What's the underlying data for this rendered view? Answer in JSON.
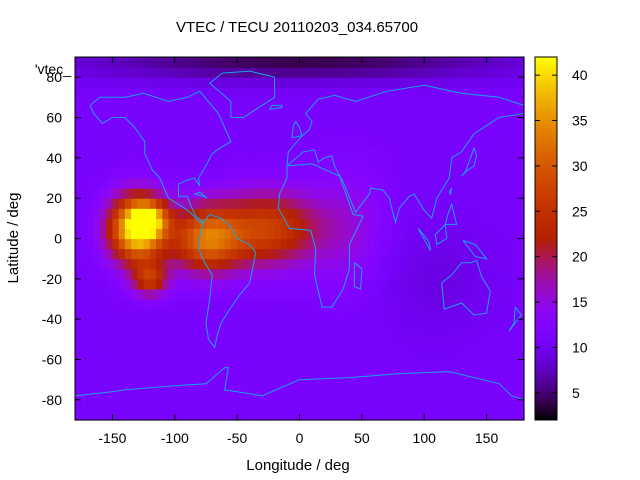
{
  "chart_data": {
    "type": "heatmap",
    "title": "VTEC / TECU 20110203_034.65700",
    "xlabel": "Longitude / deg",
    "ylabel": "Latitude / deg",
    "key_label": "'vtec_",
    "xlim": [
      -180,
      180
    ],
    "ylim": [
      -90,
      90
    ],
    "x_ticks": [
      {
        "value": -150,
        "label": "-150"
      },
      {
        "value": -100,
        "label": "-100"
      },
      {
        "value": -50,
        "label": "-50"
      },
      {
        "value": 0,
        "label": "0"
      },
      {
        "value": 50,
        "label": "50"
      },
      {
        "value": 100,
        "label": "100"
      },
      {
        "value": 150,
        "label": "150"
      }
    ],
    "y_ticks": [
      {
        "value": -80,
        "label": "-80"
      },
      {
        "value": -60,
        "label": "-60"
      },
      {
        "value": -40,
        "label": "-40"
      },
      {
        "value": -20,
        "label": "-20"
      },
      {
        "value": 0,
        "label": "0"
      },
      {
        "value": 20,
        "label": "20"
      },
      {
        "value": 40,
        "label": "40"
      },
      {
        "value": 60,
        "label": "60"
      },
      {
        "value": 80,
        "label": "80"
      }
    ],
    "colorbar": {
      "min": 2,
      "max": 42,
      "ticks": [
        {
          "value": 5,
          "label": "5"
        },
        {
          "value": 10,
          "label": "10"
        },
        {
          "value": 15,
          "label": "15"
        },
        {
          "value": 20,
          "label": "20"
        },
        {
          "value": 25,
          "label": "25"
        },
        {
          "value": 30,
          "label": "30"
        },
        {
          "value": 35,
          "label": "35"
        },
        {
          "value": 40,
          "label": "40"
        }
      ]
    },
    "field": {
      "background_value": 11,
      "grid_lon_step": 5,
      "grid_lat_step": 5,
      "features": [
        {
          "lon": -130,
          "lat": 5,
          "value": 32
        },
        {
          "lon": -75,
          "lat": 0,
          "value": 20
        },
        {
          "lon": -25,
          "lat": 5,
          "value": 16
        },
        {
          "lon": -120,
          "lat": 10,
          "value": 14
        },
        {
          "lon": -120,
          "lat": -20,
          "value": 14
        },
        {
          "lon": 40,
          "lat": 5,
          "value": 4
        },
        {
          "lon": 0,
          "lat": 88,
          "value": -7
        },
        {
          "lon": 110,
          "lat": -20,
          "value": -2
        }
      ]
    },
    "coastline_color": "#1ea0f0"
  }
}
